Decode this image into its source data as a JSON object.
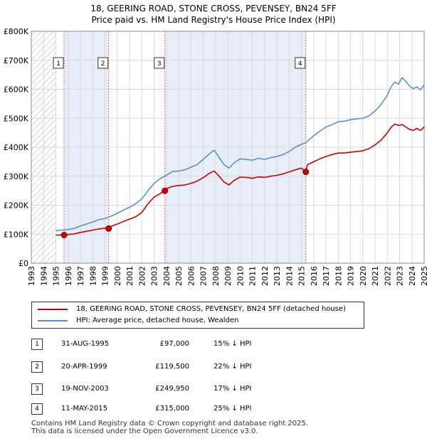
{
  "title_line1": "18, GEERING ROAD, STONE CROSS, PEVENSEY, BN24 5FF",
  "title_line2": "Price paid vs. HM Land Registry's House Price Index (HPI)",
  "legend": {
    "property": "18, GEERING ROAD, STONE CROSS, PEVENSEY, BN24 5FF (detached house)",
    "hpi": "HPI: Average price, detached house, Wealden"
  },
  "colors": {
    "property": "#cc0000",
    "hpi": "#5b8fd1",
    "shade": "#e8eef8",
    "sale_marker": "#cc0000"
  },
  "sales": [
    {
      "num": "1",
      "date": "31-AUG-1995",
      "price": "£97,000",
      "hpi": "15% ↓ HPI"
    },
    {
      "num": "2",
      "date": "20-APR-1999",
      "price": "£119,500",
      "hpi": "22% ↓ HPI"
    },
    {
      "num": "3",
      "date": "19-NOV-2003",
      "price": "£249,950",
      "hpi": "17% ↓ HPI"
    },
    {
      "num": "4",
      "date": "11-MAY-2015",
      "price": "£315,000",
      "hpi": "25% ↓ HPI"
    }
  ],
  "footer_line1": "Contains HM Land Registry data © Crown copyright and database right 2025.",
  "footer_line2": "This data is licensed under the Open Government Licence v3.0.",
  "chart_data": {
    "type": "line",
    "title": "18, GEERING ROAD, STONE CROSS, PEVENSEY, BN24 5FF",
    "subtitle": "Price paid vs. HM Land Registry's House Price Index (HPI)",
    "xlabel": "",
    "ylabel": "",
    "xlim": [
      1993,
      2025
    ],
    "ylim": [
      0,
      800000
    ],
    "grid": true,
    "legend_position": "bottom",
    "x_ticks": [
      1993,
      1994,
      1995,
      1996,
      1997,
      1998,
      1999,
      2000,
      2001,
      2002,
      2003,
      2004,
      2005,
      2006,
      2007,
      2008,
      2009,
      2010,
      2011,
      2012,
      2013,
      2014,
      2015,
      2016,
      2017,
      2018,
      2019,
      2020,
      2021,
      2022,
      2023,
      2024,
      2025
    ],
    "y_ticks": [
      0,
      100000,
      200000,
      300000,
      400000,
      500000,
      600000,
      700000,
      800000
    ],
    "y_tick_labels": [
      "£0",
      "£100K",
      "£200K",
      "£300K",
      "£400K",
      "£500K",
      "£600K",
      "£700K",
      "£800K"
    ],
    "shaded_regions": [
      {
        "from": 1993,
        "to": 1995.0,
        "style": "hatched"
      },
      {
        "from": 1995.67,
        "to": 1999.3
      },
      {
        "from": 2003.88,
        "to": 2015.36
      }
    ],
    "series": [
      {
        "name": "HPI: Average price, detached house, Wealden",
        "x": [
          1995.0,
          1995.5,
          1996,
          1996.5,
          1997,
          1997.5,
          1998,
          1998.5,
          1999,
          1999.5,
          2000,
          2000.5,
          2001,
          2001.5,
          2002,
          2002.5,
          2003,
          2003.5,
          2004,
          2004.5,
          2005,
          2005.5,
          2006,
          2006.5,
          2007,
          2007.5,
          2007.9,
          2008.3,
          2008.7,
          2009.1,
          2009.5,
          2010,
          2010.5,
          2011,
          2011.5,
          2012,
          2012.5,
          2013,
          2013.5,
          2014,
          2014.5,
          2015,
          2015.3,
          2015.5,
          2016,
          2016.5,
          2017,
          2017.5,
          2018,
          2018.5,
          2019,
          2019.5,
          2020,
          2020.5,
          2021,
          2021.5,
          2022,
          2022.3,
          2022.6,
          2022.9,
          2023.2,
          2023.5,
          2023.8,
          2024.1,
          2024.4,
          2024.7,
          2025
        ],
        "values": [
          112000,
          114000,
          116000,
          120000,
          128000,
          135000,
          142000,
          150000,
          154000,
          162000,
          172000,
          183000,
          193000,
          205000,
          222000,
          250000,
          275000,
          292000,
          303000,
          316000,
          318000,
          322000,
          331000,
          340000,
          358000,
          377000,
          390000,
          365000,
          340000,
          328000,
          345000,
          360000,
          358000,
          355000,
          362000,
          358000,
          364000,
          368000,
          375000,
          385000,
          400000,
          410000,
          415000,
          420000,
          440000,
          455000,
          470000,
          478000,
          488000,
          490000,
          495000,
          498000,
          500000,
          508000,
          525000,
          548000,
          580000,
          608000,
          625000,
          618000,
          640000,
          628000,
          612000,
          602000,
          608000,
          598000,
          615000
        ]
      },
      {
        "name": "18, GEERING ROAD, STONE CROSS, PEVENSEY, BN24 5FF (detached house)",
        "x": [
          1995.0,
          1995.67,
          1996,
          1996.5,
          1997,
          1997.5,
          1998,
          1998.5,
          1999,
          1999.3,
          1999.5,
          2000,
          2000.5,
          2001,
          2001.5,
          2002,
          2002.5,
          2003,
          2003.5,
          2003.88,
          2004,
          2004.5,
          2005,
          2005.5,
          2006,
          2006.5,
          2007,
          2007.5,
          2007.9,
          2008.3,
          2008.7,
          2009.1,
          2009.5,
          2010,
          2010.5,
          2011,
          2011.5,
          2012,
          2012.5,
          2013,
          2013.5,
          2014,
          2014.5,
          2015,
          2015.36,
          2015.5,
          2016,
          2016.5,
          2017,
          2017.5,
          2018,
          2018.5,
          2019,
          2019.5,
          2020,
          2020.5,
          2021,
          2021.5,
          2022,
          2022.3,
          2022.6,
          2022.9,
          2023.2,
          2023.5,
          2023.8,
          2024.1,
          2024.4,
          2024.7,
          2025
        ],
        "values": [
          97000,
          97000,
          99000,
          101000,
          106000,
          110000,
          114000,
          118000,
          121000,
          119500,
          127000,
          135000,
          144000,
          152000,
          160000,
          175000,
          205000,
          228000,
          240000,
          249950,
          257000,
          265000,
          268000,
          270000,
          275000,
          283000,
          295000,
          310000,
          318000,
          300000,
          280000,
          270000,
          285000,
          297000,
          296000,
          293000,
          298000,
          296000,
          300000,
          303000,
          308000,
          315000,
          322000,
          328000,
          315000,
          340000,
          350000,
          360000,
          368000,
          375000,
          380000,
          380000,
          383000,
          385000,
          388000,
          395000,
          408000,
          425000,
          450000,
          468000,
          480000,
          475000,
          478000,
          470000,
          462000,
          458000,
          465000,
          458000,
          470000
        ]
      }
    ],
    "sale_markers": [
      {
        "label": "1",
        "x": 1995.67,
        "value": 97000
      },
      {
        "label": "2",
        "x": 1999.3,
        "value": 119500
      },
      {
        "label": "3",
        "x": 2003.88,
        "value": 249950
      },
      {
        "label": "4",
        "x": 2015.36,
        "value": 315000
      }
    ]
  }
}
